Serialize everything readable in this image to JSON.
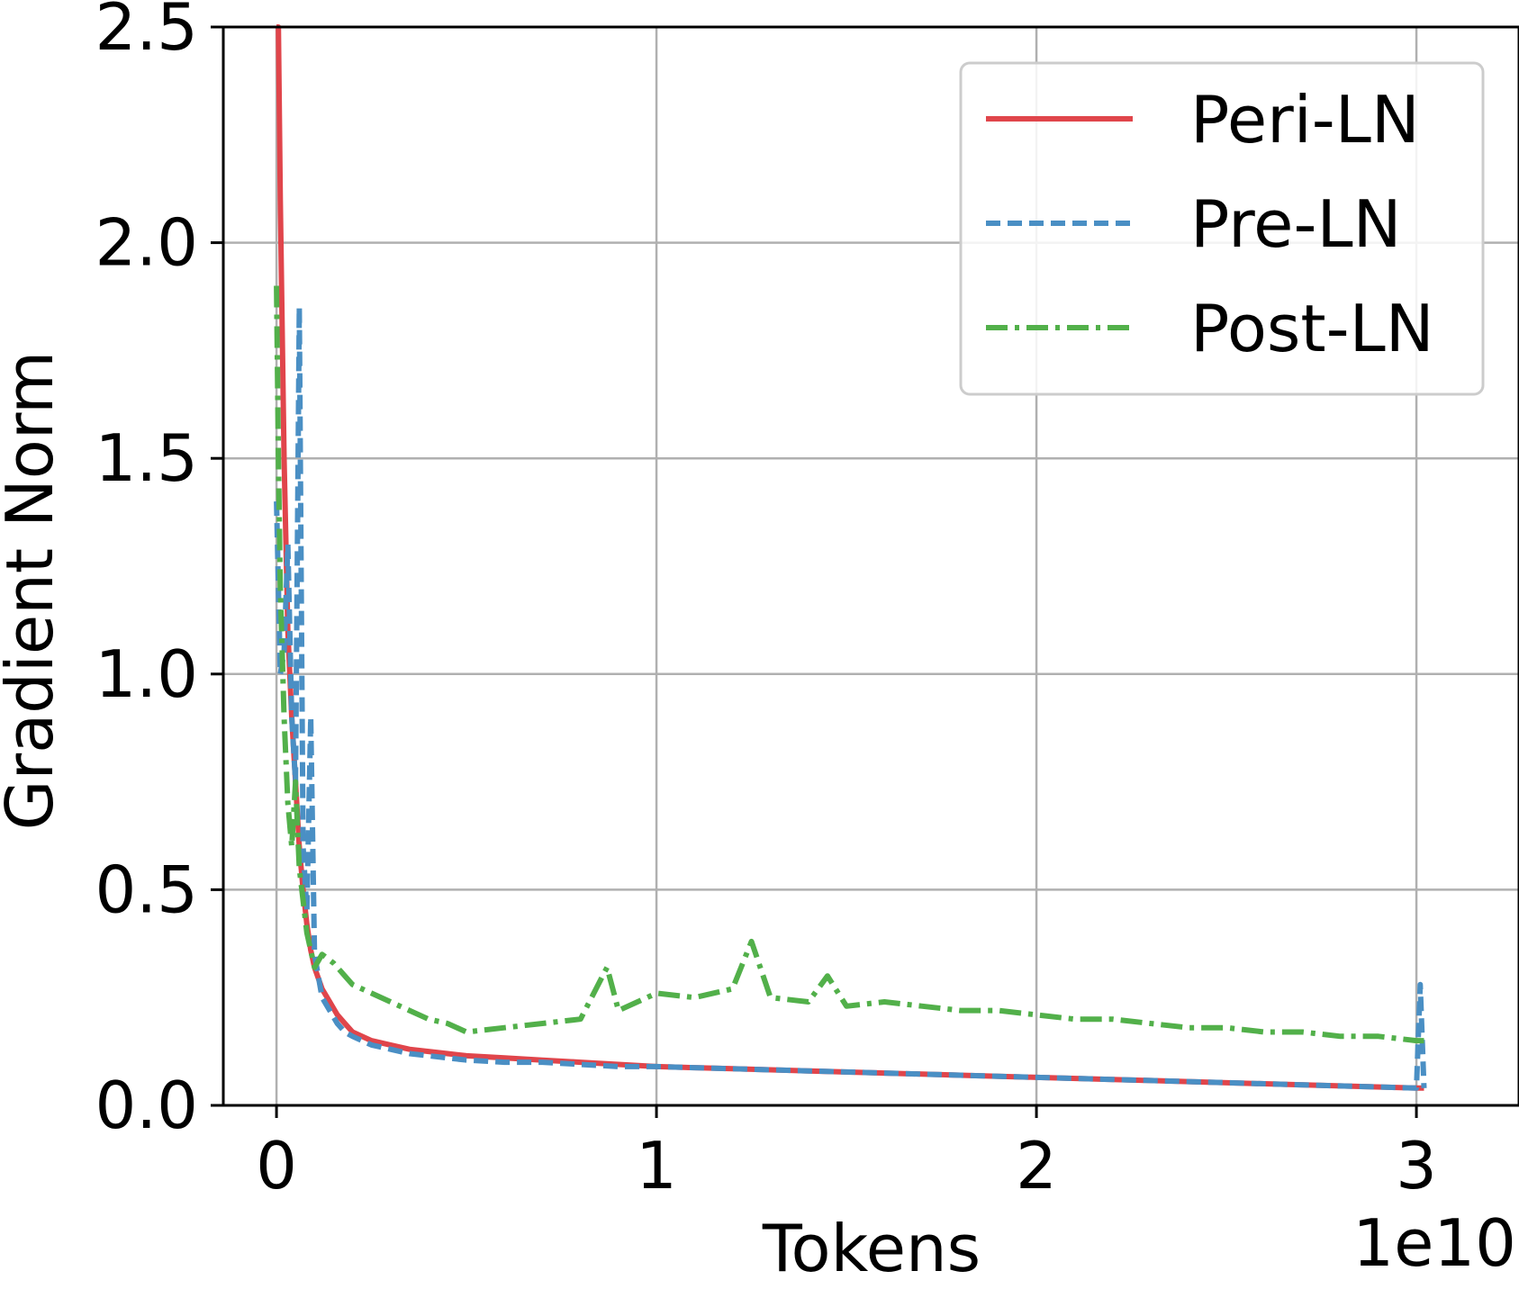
{
  "chart_data": {
    "type": "line",
    "title": "",
    "xlabel": "Tokens",
    "ylabel": "Gradient Norm",
    "x_offset_label": "1e10",
    "xlim": [
      -0.14,
      3.27
    ],
    "ylim": [
      0.0,
      2.5
    ],
    "x_ticks": [
      0,
      1,
      2,
      3
    ],
    "x_tick_labels": [
      "0",
      "1",
      "2",
      "3"
    ],
    "y_ticks": [
      0.0,
      0.5,
      1.0,
      1.5,
      2.0,
      2.5
    ],
    "y_tick_labels": [
      "0.0",
      "0.5",
      "1.0",
      "1.5",
      "2.0",
      "2.5"
    ],
    "grid": true,
    "legend_position": "top-right",
    "series": [
      {
        "name": "Peri-LN",
        "color": "#e0454b",
        "style": "solid",
        "x": [
          0.0,
          0.005,
          0.01,
          0.02,
          0.03,
          0.04,
          0.05,
          0.06,
          0.07,
          0.08,
          0.09,
          0.1,
          0.12,
          0.14,
          0.16,
          0.18,
          0.2,
          0.25,
          0.3,
          0.35,
          0.4,
          0.45,
          0.5,
          0.6,
          0.7,
          0.8,
          0.9,
          1.0,
          1.2,
          1.4,
          1.6,
          1.8,
          2.0,
          2.2,
          2.4,
          2.6,
          2.8,
          3.0,
          3.02
        ],
        "y": [
          2.5,
          2.5,
          2.1,
          1.5,
          1.1,
          0.9,
          0.75,
          0.6,
          0.5,
          0.42,
          0.36,
          0.32,
          0.27,
          0.24,
          0.21,
          0.19,
          0.17,
          0.15,
          0.14,
          0.13,
          0.125,
          0.12,
          0.115,
          0.11,
          0.105,
          0.1,
          0.095,
          0.09,
          0.085,
          0.08,
          0.075,
          0.07,
          0.065,
          0.06,
          0.055,
          0.05,
          0.045,
          0.04,
          0.04
        ]
      },
      {
        "name": "Pre-LN",
        "color": "#4a8fc4",
        "style": "dashed",
        "x": [
          0.0,
          0.005,
          0.01,
          0.02,
          0.03,
          0.04,
          0.05,
          0.06,
          0.07,
          0.08,
          0.09,
          0.1,
          0.12,
          0.14,
          0.16,
          0.18,
          0.2,
          0.25,
          0.3,
          0.35,
          0.4,
          0.45,
          0.5,
          0.6,
          0.7,
          0.8,
          0.9,
          1.0,
          1.2,
          1.4,
          1.6,
          1.8,
          2.0,
          2.2,
          2.4,
          2.6,
          2.8,
          3.0,
          3.01,
          3.02
        ],
        "y": [
          1.4,
          1.2,
          1.0,
          1.05,
          1.3,
          0.9,
          0.75,
          1.85,
          0.6,
          0.45,
          0.9,
          0.35,
          0.25,
          0.22,
          0.19,
          0.17,
          0.16,
          0.14,
          0.13,
          0.12,
          0.115,
          0.11,
          0.105,
          0.1,
          0.1,
          0.095,
          0.09,
          0.09,
          0.085,
          0.08,
          0.075,
          0.07,
          0.065,
          0.06,
          0.055,
          0.05,
          0.045,
          0.04,
          0.28,
          0.04
        ]
      },
      {
        "name": "Post-LN",
        "color": "#52b04a",
        "style": "dashdot",
        "x": [
          0.0,
          0.005,
          0.01,
          0.02,
          0.03,
          0.04,
          0.05,
          0.06,
          0.08,
          0.1,
          0.12,
          0.15,
          0.2,
          0.25,
          0.3,
          0.35,
          0.4,
          0.45,
          0.5,
          0.6,
          0.7,
          0.8,
          0.87,
          0.9,
          1.0,
          1.1,
          1.2,
          1.25,
          1.3,
          1.4,
          1.45,
          1.5,
          1.6,
          1.7,
          1.8,
          1.9,
          2.0,
          2.1,
          2.2,
          2.3,
          2.4,
          2.5,
          2.6,
          2.7,
          2.8,
          2.9,
          3.0,
          3.02
        ],
        "y": [
          1.9,
          1.5,
          1.2,
          0.9,
          0.7,
          0.6,
          0.75,
          0.55,
          0.4,
          0.32,
          0.35,
          0.33,
          0.28,
          0.26,
          0.24,
          0.22,
          0.2,
          0.19,
          0.17,
          0.18,
          0.19,
          0.2,
          0.32,
          0.22,
          0.26,
          0.25,
          0.27,
          0.38,
          0.25,
          0.24,
          0.3,
          0.23,
          0.24,
          0.23,
          0.22,
          0.22,
          0.21,
          0.2,
          0.2,
          0.19,
          0.18,
          0.18,
          0.17,
          0.17,
          0.16,
          0.16,
          0.15,
          0.15
        ]
      }
    ]
  }
}
